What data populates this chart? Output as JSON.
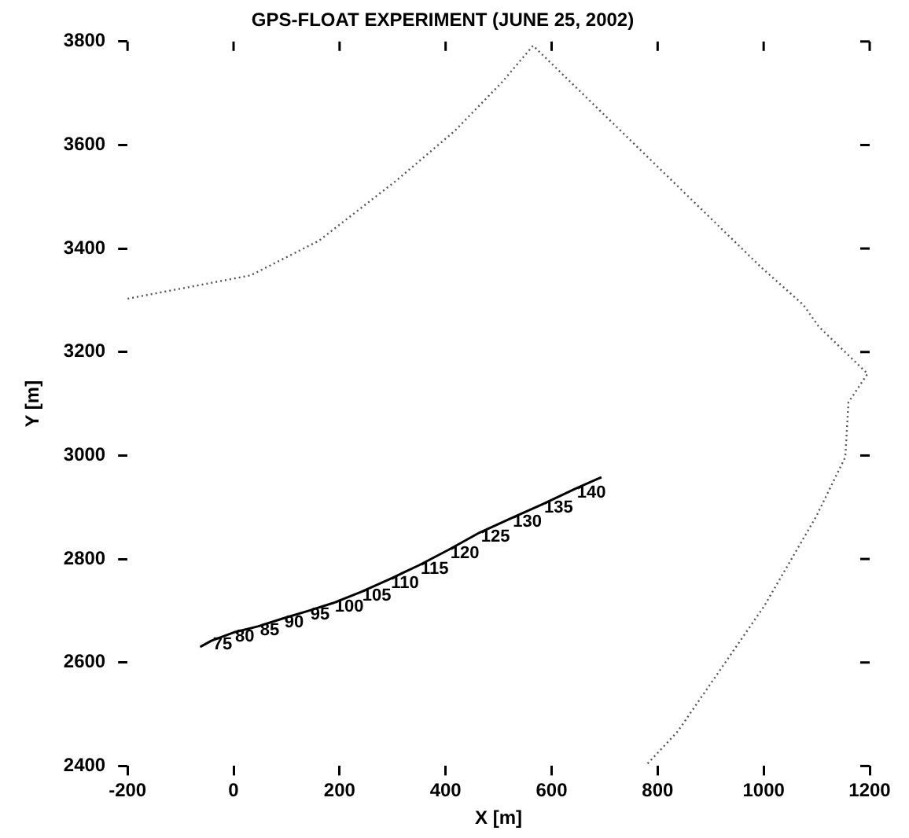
{
  "chart_data": {
    "type": "line",
    "title": "GPS-FLOAT EXPERIMENT (JUNE 25, 2002)",
    "xlabel": "X [m]",
    "ylabel": "Y [m]",
    "xlim": [
      -200,
      1200
    ],
    "xticks": [
      -200,
      0,
      200,
      400,
      600,
      800,
      1000,
      1200
    ],
    "ylim": [
      2400,
      3800
    ],
    "yticks": [
      2400,
      2600,
      2800,
      3000,
      3200,
      3400,
      3600,
      3800
    ],
    "grid": false,
    "legend": false,
    "marker": "none",
    "series": [
      {
        "type": "line",
        "color": "#000000",
        "line_style": "solid",
        "x": [
          -63,
          -42,
          0,
          47,
          93,
          142,
          188,
          240,
          294,
          350,
          406,
          464,
          524,
          583,
          645,
          694
        ],
        "values": [
          2630,
          2642,
          2658,
          2670,
          2685,
          2700,
          2715,
          2736,
          2761,
          2788,
          2818,
          2851,
          2879,
          2906,
          2936,
          2958
        ]
      },
      {
        "type": "line",
        "color": "#555555",
        "line_style": "dotted",
        "x": [
          -200,
          32,
          161,
          308,
          417,
          507,
          565,
          995,
          1075,
          1104,
          1196,
          1160,
          1154,
          1099,
          1001,
          838,
          777
        ],
        "values": [
          3303,
          3348,
          3415,
          3532,
          3627,
          3722,
          3792,
          3364,
          3291,
          3249,
          3158,
          3103,
          2997,
          2882,
          2709,
          2467,
          2400
        ]
      }
    ],
    "annotations": [
      {
        "text": "75",
        "x": -42,
        "y": 2642
      },
      {
        "text": "80",
        "x": 0,
        "y": 2658
      },
      {
        "text": "85",
        "x": 47,
        "y": 2670
      },
      {
        "text": "90",
        "x": 93,
        "y": 2685
      },
      {
        "text": "95",
        "x": 142,
        "y": 2700
      },
      {
        "text": "100",
        "x": 188,
        "y": 2715
      },
      {
        "text": "105",
        "x": 240,
        "y": 2736
      },
      {
        "text": "110",
        "x": 294,
        "y": 2761
      },
      {
        "text": "115",
        "x": 350,
        "y": 2788
      },
      {
        "text": "120",
        "x": 406,
        "y": 2818
      },
      {
        "text": "125",
        "x": 464,
        "y": 2851
      },
      {
        "text": "130",
        "x": 524,
        "y": 2879
      },
      {
        "text": "135",
        "x": 583,
        "y": 2906
      },
      {
        "text": "140",
        "x": 645,
        "y": 2936
      }
    ]
  }
}
